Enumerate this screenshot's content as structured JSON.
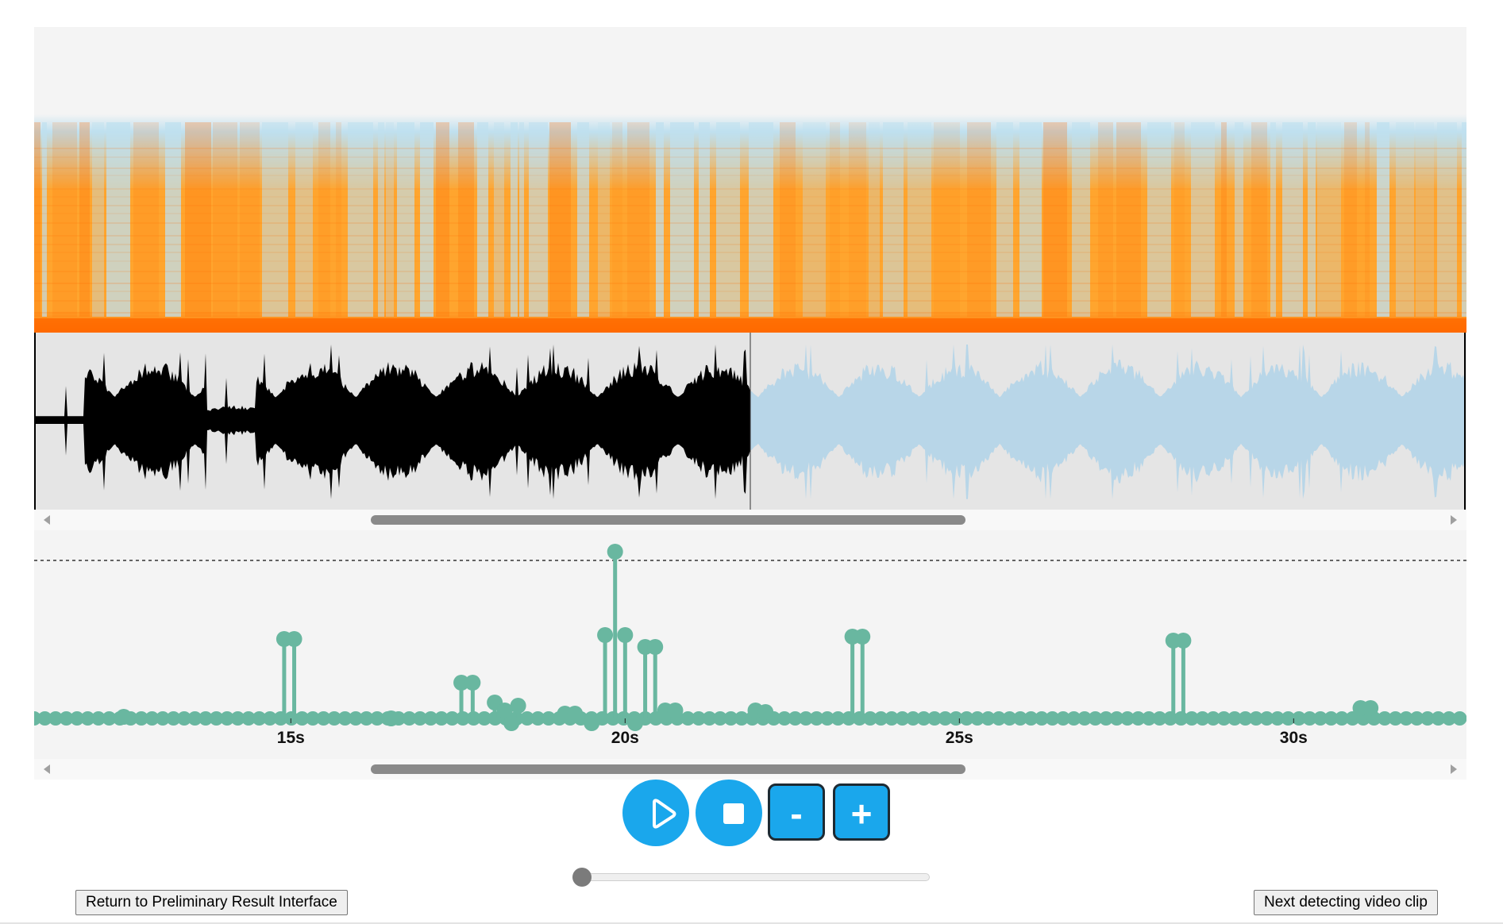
{
  "spectrogram": {
    "colors": {
      "low": "#bfe0ef",
      "mid": "#ffa52e",
      "high": "#ff6a00",
      "bg": "#f4f4f4"
    }
  },
  "waveform": {
    "played_color": "#000000",
    "unplayed_color": "#b8d6e8",
    "background": "#e5e5e5",
    "progress_fraction": 0.5
  },
  "top_scrollbar": {
    "thumb_start_fraction": 0.235,
    "thumb_end_fraction": 0.65
  },
  "stem_plot": {
    "stem_color": "#69b7a0",
    "threshold_style": "dashed",
    "tick_labels": [
      "15s",
      "20s",
      "25s",
      "30s"
    ]
  },
  "bottom_scrollbar": {
    "thumb_start_fraction": 0.235,
    "thumb_end_fraction": 0.65
  },
  "controls": {
    "play_icon": "play-icon",
    "stop_icon": "stop-icon",
    "zoom_out_label": "-",
    "zoom_in_label": "+",
    "accent_color": "#1aa7ec"
  },
  "playback_slider": {
    "position_fraction": 0.0
  },
  "buttons": {
    "return_label": "Return to Preliminary Result Interface",
    "next_label": "Next detecting video clip"
  }
}
